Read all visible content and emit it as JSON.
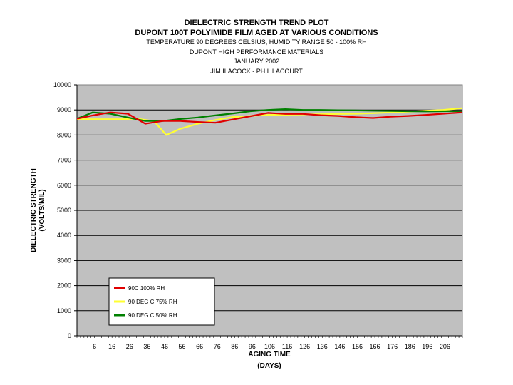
{
  "chart_data": {
    "type": "line",
    "titles": [
      "DIELECTRIC STRENGTH TREND PLOT",
      "DUPONT 100T POLYIMIDE FILM AGED AT VARIOUS CONDITIONS",
      "TEMPERATURE 90 DEGREES CELSIUS, HUMIDITY RANGE 50 - 100% RH",
      "DUPONT HIGH PERFORMANCE MATERIALS",
      "JANUARY 2002",
      "JIM ILACOCK - PHIL LACOURT"
    ],
    "ylabel": "DIELECTRIC STRENGTH",
    "ylabel_units": "(VOLTS/MIL)",
    "xlabel": "AGING TIME",
    "xlabel_units": "(DAYS)",
    "ylim": [
      0,
      10000
    ],
    "yticks": [
      "0",
      "1000",
      "2000",
      "3000",
      "4000",
      "5000",
      "6000",
      "7000",
      "8000",
      "9000",
      "10000"
    ],
    "xlim": [
      -4,
      216
    ],
    "xticks": [
      "6",
      "16",
      "26",
      "36",
      "46",
      "56",
      "66",
      "76",
      "86",
      "96",
      "106",
      "116",
      "126",
      "136",
      "146",
      "156",
      "166",
      "176",
      "186",
      "196",
      "206"
    ],
    "grid": "horizontal",
    "legend_position": "bottom-left",
    "background_color": "#c0c0c0",
    "series": [
      {
        "name": "90C 100% RH",
        "color": "#e00000",
        "x": [
          -4,
          5,
          15,
          25,
          35,
          45,
          55,
          65,
          75,
          85,
          95,
          105,
          115,
          125,
          135,
          145,
          155,
          165,
          175,
          185,
          195,
          205,
          216
        ],
        "y": [
          8650,
          8780,
          8900,
          8850,
          8450,
          8560,
          8560,
          8520,
          8490,
          8620,
          8750,
          8880,
          8840,
          8840,
          8790,
          8760,
          8710,
          8680,
          8730,
          8760,
          8800,
          8850,
          8900
        ]
      },
      {
        "name": "90 DEG C 75% RH",
        "color": "#ffff33",
        "x": [
          -4,
          10,
          20,
          30,
          40,
          47,
          55,
          65,
          75,
          85,
          95,
          105,
          115,
          125,
          135,
          145,
          155,
          165,
          175,
          185,
          195,
          205,
          216
        ],
        "y": [
          8630,
          8630,
          8630,
          8650,
          8550,
          8000,
          8250,
          8450,
          8600,
          8720,
          8760,
          8800,
          8810,
          8820,
          8830,
          8840,
          8850,
          8870,
          8900,
          8930,
          8970,
          9000,
          9070
        ]
      },
      {
        "name": "90 DEG C 50% RH",
        "color": "#008000",
        "x": [
          -4,
          5,
          15,
          25,
          35,
          45,
          55,
          65,
          75,
          85,
          95,
          105,
          115,
          125,
          135,
          145,
          155,
          165,
          175,
          185,
          195,
          205,
          216
        ],
        "y": [
          8650,
          8900,
          8850,
          8700,
          8560,
          8560,
          8640,
          8700,
          8780,
          8860,
          8950,
          9000,
          9030,
          9000,
          9000,
          8990,
          8980,
          8970,
          8960,
          8950,
          8940,
          8950,
          8950
        ]
      }
    ]
  }
}
